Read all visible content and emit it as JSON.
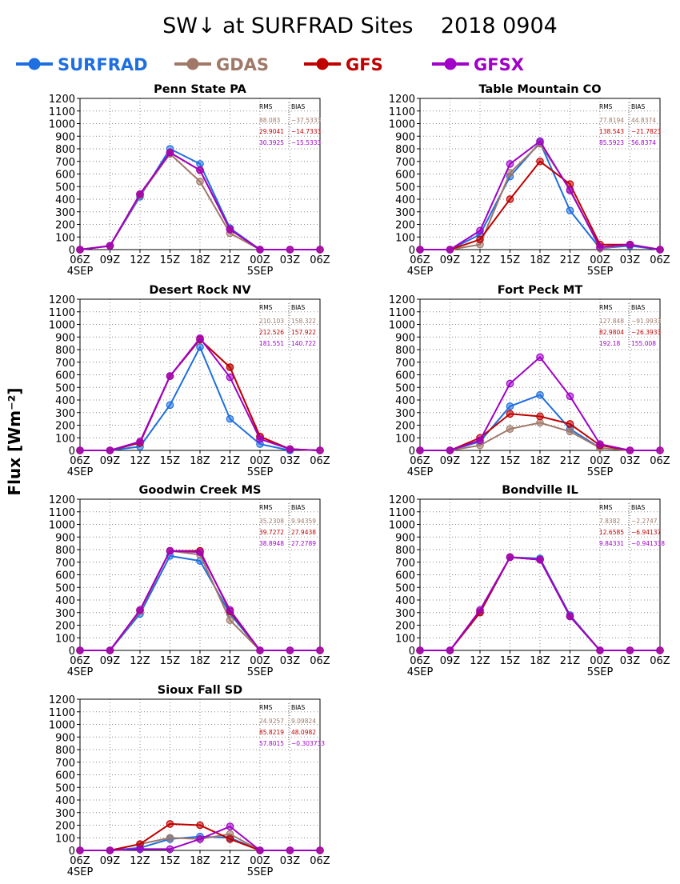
{
  "title": "SW↓ at SURFRAD Sites    2018 0904",
  "ylabel": "Flux [Wm⁻²]",
  "legend": [
    {
      "name": "SURFRAD",
      "color": "#1e6fe0"
    },
    {
      "name": "GDAS",
      "color": "#a07868"
    },
    {
      "name": "GFS",
      "color": "#c00000"
    },
    {
      "name": "GFSX",
      "color": "#a000c8"
    }
  ],
  "stats_headers": [
    "RMS",
    "BIAS"
  ],
  "x_ticks": [
    "06Z",
    "09Z",
    "12Z",
    "15Z",
    "18Z",
    "21Z",
    "00Z",
    "03Z",
    "06Z"
  ],
  "x_date_labels": [
    {
      "at": 0,
      "text": "4SEP"
    },
    {
      "at": 6,
      "text": "5SEP"
    }
  ],
  "y_ticks": [
    0,
    100,
    200,
    300,
    400,
    500,
    600,
    700,
    800,
    900,
    1000,
    1100,
    1200
  ],
  "chart_data": [
    {
      "type": "line",
      "title": "Penn State PA",
      "x": [
        "06Z",
        "09Z",
        "12Z",
        "15Z",
        "18Z",
        "21Z",
        "00Z",
        "03Z",
        "06Z"
      ],
      "ylim": [
        0,
        1200
      ],
      "grid": true,
      "stats": [
        {
          "rms": "88.083",
          "bias": "−37.5333"
        },
        {
          "rms": "29.9041",
          "bias": "−14.7333"
        },
        {
          "rms": "30.3925",
          "bias": "−15.5333"
        }
      ],
      "series": [
        {
          "name": "SURFRAD",
          "values": [
            0,
            30,
            420,
            800,
            680,
            170,
            0,
            null,
            null
          ]
        },
        {
          "name": "GDAS",
          "values": [
            0,
            30,
            430,
            760,
            540,
            130,
            0,
            0,
            0
          ]
        },
        {
          "name": "GFS",
          "values": [
            0,
            30,
            440,
            770,
            630,
            160,
            0,
            0,
            0
          ]
        },
        {
          "name": "GFSX",
          "values": [
            0,
            30,
            440,
            770,
            630,
            160,
            0,
            0,
            0
          ]
        }
      ]
    },
    {
      "type": "line",
      "title": "Table Mountain CO",
      "x": [
        "06Z",
        "09Z",
        "12Z",
        "15Z",
        "18Z",
        "21Z",
        "00Z",
        "03Z",
        "06Z"
      ],
      "ylim": [
        0,
        1200
      ],
      "grid": true,
      "stats": [
        {
          "rms": "77.8194",
          "bias": "44.8374"
        },
        {
          "rms": "138.543",
          "bias": "−21.7823"
        },
        {
          "rms": "85.5923",
          "bias": "56.8374"
        }
      ],
      "series": [
        {
          "name": "SURFRAD",
          "values": [
            0,
            0,
            120,
            580,
            850,
            310,
            10,
            30,
            0
          ]
        },
        {
          "name": "GDAS",
          "values": [
            0,
            0,
            40,
            610,
            840,
            480,
            10,
            40,
            0
          ]
        },
        {
          "name": "GFS",
          "values": [
            0,
            0,
            80,
            400,
            700,
            520,
            40,
            40,
            0
          ]
        },
        {
          "name": "GFSX",
          "values": [
            0,
            0,
            150,
            680,
            860,
            470,
            20,
            40,
            0
          ]
        }
      ]
    },
    {
      "type": "line",
      "title": "Desert Rock NV",
      "x": [
        "06Z",
        "09Z",
        "12Z",
        "15Z",
        "18Z",
        "21Z",
        "00Z",
        "03Z",
        "06Z"
      ],
      "ylim": [
        0,
        1200
      ],
      "grid": true,
      "stats": [
        {
          "rms": "210.103",
          "bias": "158.322"
        },
        {
          "rms": "212.526",
          "bias": "157.922"
        },
        {
          "rms": "181.551",
          "bias": "140.722"
        }
      ],
      "series": [
        {
          "name": "SURFRAD",
          "values": [
            0,
            0,
            30,
            360,
            820,
            250,
            50,
            0,
            null
          ]
        },
        {
          "name": "GDAS",
          "values": [
            0,
            0,
            60,
            590,
            880,
            660,
            110,
            10,
            0
          ]
        },
        {
          "name": "GFS",
          "values": [
            0,
            0,
            60,
            590,
            880,
            660,
            110,
            10,
            0
          ]
        },
        {
          "name": "GFSX",
          "values": [
            0,
            0,
            70,
            590,
            890,
            580,
            90,
            10,
            0
          ]
        }
      ]
    },
    {
      "type": "line",
      "title": "Fort Peck MT",
      "x": [
        "06Z",
        "09Z",
        "12Z",
        "15Z",
        "18Z",
        "21Z",
        "00Z",
        "03Z",
        "06Z"
      ],
      "ylim": [
        0,
        1200
      ],
      "grid": true,
      "stats": [
        {
          "rms": "127.848",
          "bias": "−91.9933"
        },
        {
          "rms": "82.9804",
          "bias": "−26.3933"
        },
        {
          "rms": "192.18",
          "bias": "155.008"
        }
      ],
      "series": [
        {
          "name": "SURFRAD",
          "values": [
            0,
            0,
            70,
            350,
            440,
            170,
            20,
            null,
            null
          ]
        },
        {
          "name": "GDAS",
          "values": [
            0,
            0,
            40,
            170,
            220,
            150,
            20,
            0,
            null
          ]
        },
        {
          "name": "GFS",
          "values": [
            0,
            0,
            100,
            290,
            270,
            210,
            40,
            0,
            0
          ]
        },
        {
          "name": "GFSX",
          "values": [
            0,
            0,
            80,
            530,
            740,
            430,
            50,
            0,
            0
          ]
        }
      ]
    },
    {
      "type": "line",
      "title": "Goodwin Creek MS",
      "x": [
        "06Z",
        "09Z",
        "12Z",
        "15Z",
        "18Z",
        "21Z",
        "00Z",
        "03Z",
        "06Z"
      ],
      "ylim": [
        0,
        1200
      ],
      "grid": true,
      "stats": [
        {
          "rms": "35.2308",
          "bias": "9.94359"
        },
        {
          "rms": "39.7272",
          "bias": "27.9438"
        },
        {
          "rms": "38.8948",
          "bias": "27.2789"
        }
      ],
      "series": [
        {
          "name": "SURFRAD",
          "values": [
            0,
            0,
            290,
            750,
            710,
            290,
            0,
            null,
            null
          ]
        },
        {
          "name": "GDAS",
          "values": [
            0,
            0,
            310,
            790,
            760,
            240,
            0,
            0,
            0
          ]
        },
        {
          "name": "GFS",
          "values": [
            0,
            0,
            320,
            790,
            790,
            310,
            0,
            0,
            0
          ]
        },
        {
          "name": "GFSX",
          "values": [
            0,
            0,
            320,
            790,
            780,
            320,
            0,
            0,
            0
          ]
        }
      ]
    },
    {
      "type": "line",
      "title": "Bondville IL",
      "x": [
        "06Z",
        "09Z",
        "12Z",
        "15Z",
        "18Z",
        "21Z",
        "00Z",
        "03Z",
        "06Z"
      ],
      "ylim": [
        0,
        1200
      ],
      "grid": true,
      "stats": [
        {
          "rms": "7.8382",
          "bias": "−2.2747"
        },
        {
          "rms": "12.6585",
          "bias": "−6.94137"
        },
        {
          "rms": "9.84331",
          "bias": "−0.941338"
        }
      ],
      "series": [
        {
          "name": "SURFRAD",
          "values": [
            0,
            0,
            300,
            740,
            730,
            280,
            0,
            null,
            null
          ]
        },
        {
          "name": "GDAS",
          "values": [
            0,
            0,
            310,
            740,
            720,
            270,
            0,
            0,
            0
          ]
        },
        {
          "name": "GFS",
          "values": [
            0,
            0,
            300,
            740,
            720,
            270,
            0,
            0,
            0
          ]
        },
        {
          "name": "GFSX",
          "values": [
            0,
            0,
            320,
            740,
            720,
            270,
            0,
            0,
            0
          ]
        }
      ]
    },
    {
      "type": "line",
      "title": "Sioux Fall SD",
      "x": [
        "06Z",
        "09Z",
        "12Z",
        "15Z",
        "18Z",
        "21Z",
        "00Z",
        "03Z",
        "06Z"
      ],
      "ylim": [
        0,
        1200
      ],
      "grid": true,
      "stats": [
        {
          "rms": "24.9257",
          "bias": "9.09824"
        },
        {
          "rms": "85.8219",
          "bias": "48.0982"
        },
        {
          "rms": "57.8015",
          "bias": "−0.303733"
        }
      ],
      "series": [
        {
          "name": "SURFRAD",
          "values": [
            0,
            0,
            20,
            90,
            110,
            100,
            0,
            null,
            null
          ]
        },
        {
          "name": "GDAS",
          "values": [
            0,
            0,
            50,
            100,
            90,
            130,
            0,
            0,
            0
          ]
        },
        {
          "name": "GFS",
          "values": [
            0,
            0,
            50,
            210,
            200,
            90,
            0,
            0,
            0
          ]
        },
        {
          "name": "GFSX",
          "values": [
            0,
            0,
            10,
            10,
            90,
            190,
            0,
            0,
            0
          ]
        }
      ]
    }
  ]
}
